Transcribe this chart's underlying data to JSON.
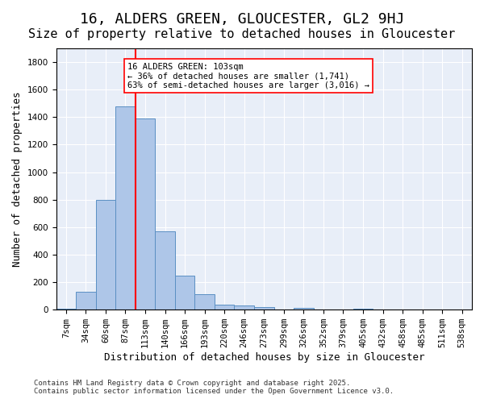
{
  "title1": "16, ALDERS GREEN, GLOUCESTER, GL2 9HJ",
  "title2": "Size of property relative to detached houses in Gloucester",
  "xlabel": "Distribution of detached houses by size in Gloucester",
  "ylabel": "Number of detached properties",
  "bar_labels": [
    "7sqm",
    "34sqm",
    "60sqm",
    "87sqm",
    "113sqm",
    "140sqm",
    "166sqm",
    "193sqm",
    "220sqm",
    "246sqm",
    "273sqm",
    "299sqm",
    "326sqm",
    "352sqm",
    "379sqm",
    "405sqm",
    "432sqm",
    "458sqm",
    "485sqm",
    "511sqm",
    "538sqm"
  ],
  "bar_values": [
    10,
    130,
    800,
    1480,
    1390,
    570,
    250,
    115,
    35,
    30,
    20,
    0,
    15,
    0,
    0,
    10,
    0,
    0,
    0,
    0,
    0
  ],
  "bar_color": "#aec6e8",
  "bar_edge_color": "#5a8fc3",
  "vline_x": 3.5,
  "vline_color": "red",
  "annotation_text": "16 ALDERS GREEN: 103sqm\n← 36% of detached houses are smaller (1,741)\n63% of semi-detached houses are larger (3,016) →",
  "annotation_box_color": "white",
  "annotation_box_edge": "red",
  "ylim": [
    0,
    1900
  ],
  "yticks": [
    0,
    200,
    400,
    600,
    800,
    1000,
    1200,
    1400,
    1600,
    1800
  ],
  "bg_color": "#e8eef8",
  "footer1": "Contains HM Land Registry data © Crown copyright and database right 2025.",
  "footer2": "Contains public sector information licensed under the Open Government Licence v3.0.",
  "title1_fontsize": 13,
  "title2_fontsize": 11,
  "xlabel_fontsize": 9,
  "ylabel_fontsize": 9,
  "tick_fontsize": 7.5,
  "footer_fontsize": 6.5
}
